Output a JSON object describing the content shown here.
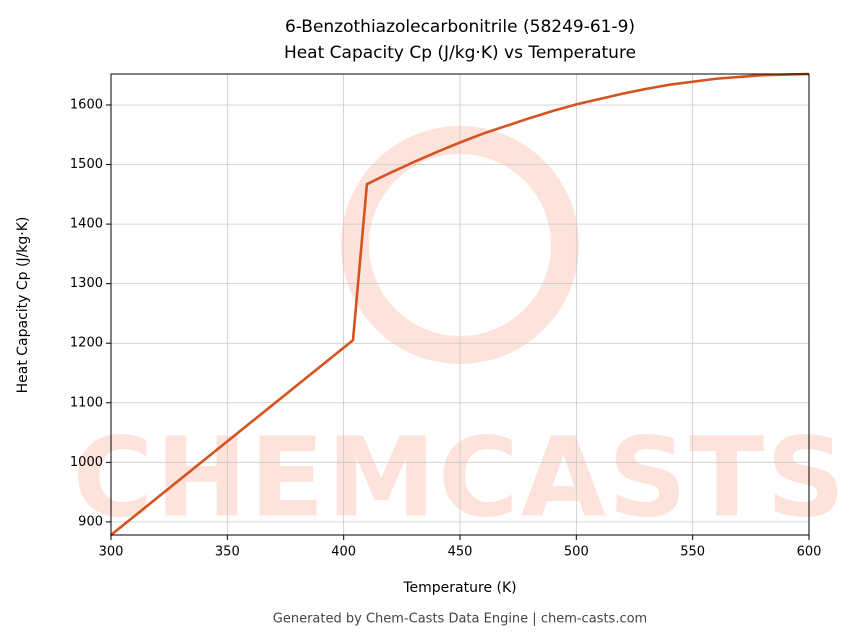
{
  "chart_data": {
    "type": "line",
    "title": [
      "6-Benzothiazolecarbonitrile (58249-61-9)",
      "Heat Capacity Cp (J/kg·K) vs Temperature"
    ],
    "x_label": "Temperature (K)",
    "y_label": "Heat Capacity Cp (J/kg·K)",
    "footer": "Generated by Chem-Casts Data Engine | chem-casts.com",
    "watermark": "CHEMCASTS",
    "x": [
      300,
      404,
      410,
      420,
      430,
      440,
      450,
      460,
      470,
      480,
      490,
      500,
      510,
      520,
      530,
      540,
      550,
      560,
      570,
      580,
      590,
      600
    ],
    "series": [
      {
        "name": "Cp",
        "color": "#d4531f",
        "values": [
          878,
          1205,
          1467,
          1486,
          1504,
          1521,
          1537,
          1552,
          1565,
          1578,
          1590,
          1601,
          1610,
          1619,
          1627,
          1634,
          1639,
          1644,
          1647,
          1650,
          1651,
          1652
        ]
      }
    ],
    "xlim": [
      300,
      600
    ],
    "ylim": [
      878,
      1652
    ],
    "xticks": [
      300,
      350,
      400,
      450,
      500,
      550,
      600
    ],
    "yticks": [
      900,
      1000,
      1100,
      1200,
      1300,
      1400,
      1500,
      1600
    ],
    "grid": true
  }
}
